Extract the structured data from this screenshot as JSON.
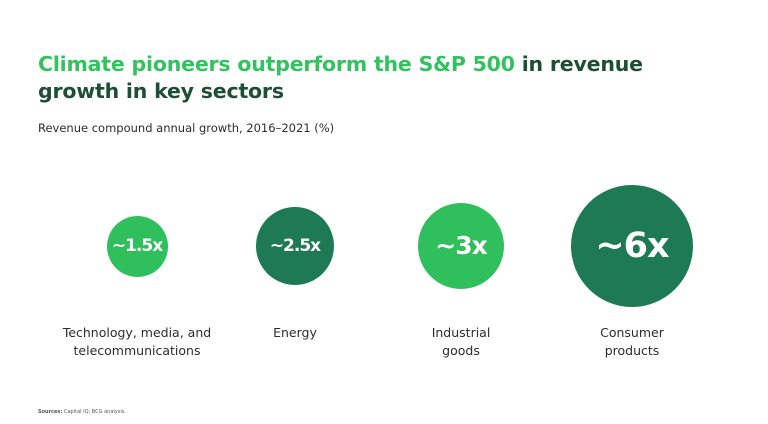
{
  "header": {
    "title_highlight": "Climate pioneers outperform the S&P 500",
    "title_rest": "in revenue growth in key sectors"
  },
  "chart_data": {
    "type": "bubble",
    "title": "Climate pioneers outperform the S&P 500 in revenue growth in key sectors",
    "subtitle": "Revenue compound annual growth, 2016–2021 (%)",
    "unit": "x",
    "categories": [
      "Technology, media, and\ntelecommunications",
      "Energy",
      "Industrial\ngoods",
      "Consumer\nproducts"
    ],
    "values": [
      1.5,
      2.5,
      3,
      6
    ],
    "data_labels": [
      "~1.5x",
      "~2.5x",
      "~3x",
      "~6x"
    ],
    "colors": [
      "#2fbf5c",
      "#1d7a55",
      "#2fbf5c",
      "#1d7a55"
    ]
  },
  "footer": {
    "sources_label": "Sources:",
    "sources_text": "Capital IQ; BCG analysis."
  }
}
